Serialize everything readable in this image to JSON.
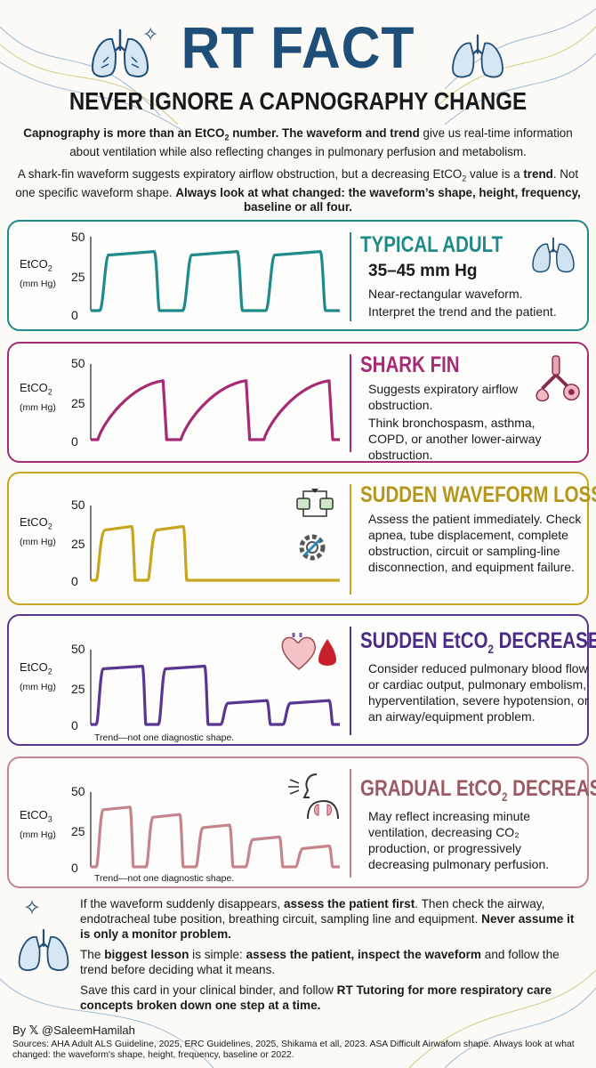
{
  "header": {
    "title": "RT FACT",
    "subtitle": "NEVER IGNORE A CAPNOGRAPHY CHANGE"
  },
  "intro": {
    "p1_bold_a": "Capnography is more than an EtCO",
    "p1_sub": "2",
    "p1_bold_b": " number. The waveform and trend",
    "p1_rest": " give us real-time information about ventilation while also reflecting changes in pulmonary perfusion and metabolism.",
    "p2_a": "A shark-fin waveform suggests expiratory airflow obstruction, but a decreasing EtCO",
    "p2_sub": "2",
    "p2_b": " value is a ",
    "p2_bold_trend": "trend",
    "p2_c": ". Not one specific waveform shape. ",
    "p2_bold_end": "Always look at what changed: the waveform’s shape, height, frequency, baseline or all four."
  },
  "axis": {
    "ylabel_main": "EtCO",
    "ylabel_sub": "2",
    "ylabel_sub_alt": "3",
    "ylabel_unit": "(mm Hg)",
    "ticks": [
      "50",
      "25",
      "0"
    ],
    "ylim": [
      0,
      50
    ]
  },
  "cards": [
    {
      "title": "TYPICAL ADULT",
      "range": "35–45 mm Hg",
      "desc": [
        "Near-rectangular waveform.",
        "Interpret the trend and the patient."
      ],
      "color": "#1f8a8a",
      "icon": "lungs-icon",
      "waveform": {
        "shape": "rectangular",
        "amplitudes": [
          40,
          40,
          40
        ]
      }
    },
    {
      "title": "SHARK FIN",
      "desc": [
        "Suggests expiratory airflow obstruction.",
        "Think bronchospasm, asthma, COPD, or another lower-airway obstruction."
      ],
      "color": "#a62a74",
      "icon": "airway-bronchi-icon",
      "waveform": {
        "shape": "shark-fin",
        "amplitudes": [
          39,
          39,
          39
        ]
      }
    },
    {
      "title": "SUDDEN WAVEFORM LOSS",
      "desc": [
        "Assess the patient immediately. Check apnea, tube displacement, complete obstruction, circuit or sampling-line disconnection, and equipment failure."
      ],
      "color": "#c7a521",
      "icon": "circuit-disconnect-icon",
      "waveform": {
        "shape": "loss",
        "amplitudes": [
          36,
          36
        ]
      }
    },
    {
      "title_a": "SUDDEN EtCO",
      "title_sub": "2",
      "title_b": " DECREASE",
      "desc": [
        "Consider reduced pulmonary blood flow or cardiac output, pulmonary embolism, hyperventilation, severe hypotension, or an airway/equipment problem."
      ],
      "color": "#5a3591",
      "icon": "heart-blood-drop-icon",
      "note": "Trend—not one diagnostic shape.",
      "waveform": {
        "shape": "sudden-decrease",
        "amplitudes": [
          39,
          39,
          16,
          16
        ]
      }
    },
    {
      "title_a": "GRADUAL EtCO",
      "title_sub": "2",
      "title_b": " DECREASE",
      "desc": [
        "May reflect increasing minute ventilation, decreasing CO₂ production, or progressively decreasing pulmonary perfusion."
      ],
      "color": "#c4848c",
      "icon": "breathing-person-icon",
      "note": "Trend—not one diagnostic shape.",
      "waveform": {
        "shape": "gradual-decrease",
        "amplitudes": [
          40,
          35,
          28,
          20,
          14
        ]
      }
    }
  ],
  "footer": {
    "f1_a": "If the waveform suddenly disappears, ",
    "f1_b": "assess the patient first",
    "f1_c": ". Then check the airway, endotracheal tube position, breathing circuit, sampling line and equipment. ",
    "f1_d": "Never assume it is only a monitor problem.",
    "f2_a": "The ",
    "f2_b": "biggest lesson",
    "f2_c": " is simple: ",
    "f2_d": "assess the patient, inspect the waveform",
    "f2_e": " and follow the trend before deciding what it means.",
    "f3_a": "Save this card in your clinical binder, and follow ",
    "f3_b": "RT Tutoring",
    "f3_c": " for more respiratory care concepts broken down one step at a time."
  },
  "byline": {
    "prefix": "By",
    "handle": "@SaleemHamilah"
  },
  "sources": "Sources: AHA Adult ALS Guideline, 2025, ERC Guidelines, 2025, Shikama et all, 2023. ASA Difficult Airwafom shape. Always look at what changed: the waveform's shape, height, frequency, baseline or 2022."
}
